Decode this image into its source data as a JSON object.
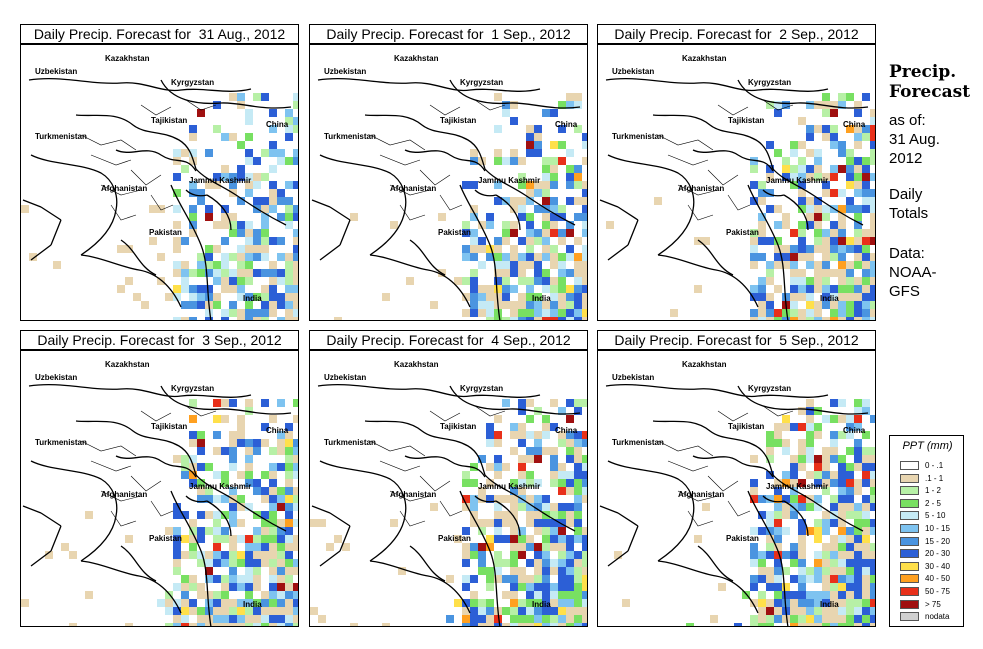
{
  "panels": [
    {
      "title": "Daily Precip. Forecast for  31 Aug., 2012",
      "wet": 0.35
    },
    {
      "title": "Daily Precip. Forecast for  1 Sep., 2012",
      "wet": 0.45
    },
    {
      "title": "Daily Precip. Forecast for  2 Sep., 2012",
      "wet": 0.6
    },
    {
      "title": "Daily Precip. Forecast for  3 Sep., 2012",
      "wet": 0.65
    },
    {
      "title": "Daily Precip. Forecast for  4 Sep., 2012",
      "wet": 0.75
    },
    {
      "title": "Daily Precip. Forecast for  5 Sep., 2012",
      "wet": 0.8
    }
  ],
  "map_labels": {
    "uzbekistan": "Uzbekistan",
    "kazakhstan": "Kazakhstan",
    "kyrgyzstan": "Kyrgyzstan",
    "tajikistan": "Tajikistan",
    "turkmenistan": "Turkmenistan",
    "china": "China",
    "afghanistan": "Afghanistan",
    "jammu_kashmir": "Jammu Kashmir",
    "pakistan": "Pakistan",
    "india": "India"
  },
  "side": {
    "title_line1": "Precip.",
    "title_line2": "Forecast",
    "asof_line1": "as of:",
    "asof_line2": "31 Aug.",
    "asof_line3": "2012",
    "daily_line1": "Daily",
    "daily_line2": "Totals",
    "data_line1": "Data:",
    "data_line2": "NOAA-",
    "data_line3": "GFS"
  },
  "legend": {
    "title": "PPT (mm)",
    "items": [
      {
        "label": "0 - .1",
        "color": "#ffffff"
      },
      {
        "label": ".1 - 1",
        "color": "#e8d5b0"
      },
      {
        "label": "1 - 2",
        "color": "#b7f0a6"
      },
      {
        "label": "2 - 5",
        "color": "#78e062"
      },
      {
        "label": "5 - 10",
        "color": "#c5eaf5"
      },
      {
        "label": "10 - 15",
        "color": "#7ec3f0"
      },
      {
        "label": "15 - 20",
        "color": "#4a94e0"
      },
      {
        "label": "20 - 30",
        "color": "#2c5fd6"
      },
      {
        "label": "30 - 40",
        "color": "#ffe04a"
      },
      {
        "label": "40 - 50",
        "color": "#ffa020"
      },
      {
        "label": "50 - 75",
        "color": "#e8301a"
      },
      {
        "label": "> 75",
        "color": "#a01010"
      },
      {
        "label": "nodata",
        "color": "#d0d0d0"
      }
    ]
  }
}
